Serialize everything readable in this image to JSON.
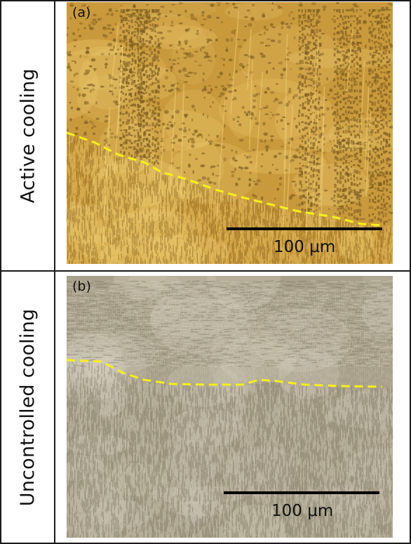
{
  "figure": {
    "panels": [
      {
        "letter": "(a)",
        "row_label": "Active cooling",
        "scale_text": "100 μm",
        "base_color": "#c99a3c",
        "highlight_color": "#f2d37a",
        "dark_color": "#7a5a1e",
        "boundary_color": "#f5f01a"
      },
      {
        "letter": "(b)",
        "row_label": "Uncontrolled cooling",
        "scale_text": "100 μm",
        "base_color": "#a8a08a",
        "highlight_color": "#d7d1c0",
        "dark_color": "#7c7562",
        "boundary_color": "#f5f01a"
      }
    ]
  }
}
